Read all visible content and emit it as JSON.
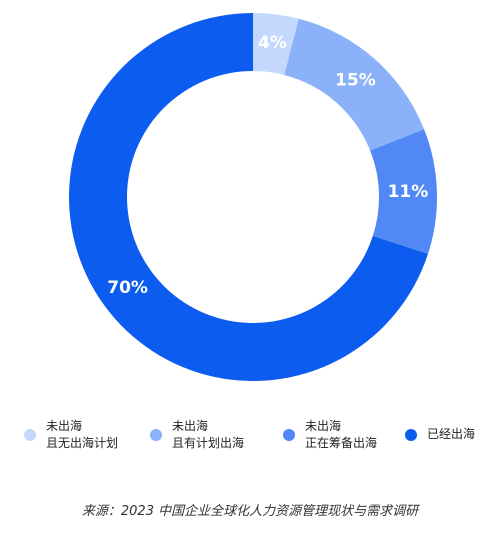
{
  "chart_data": {
    "type": "donut",
    "categories": [
      "未出海\n且无出海计划",
      "未出海\n且有计划出海",
      "未出海\n正在筹备出海",
      "已经出海"
    ],
    "values": [
      4,
      15,
      11,
      70
    ],
    "value_labels": [
      "4%",
      "15%",
      "11%",
      "70%"
    ],
    "colors": [
      "#c4d8fd",
      "#8ab1fa",
      "#5188f5",
      "#0c5cf0"
    ],
    "source": "来源：2023 中国企业全球化人力资源管理现状与需求调研"
  }
}
